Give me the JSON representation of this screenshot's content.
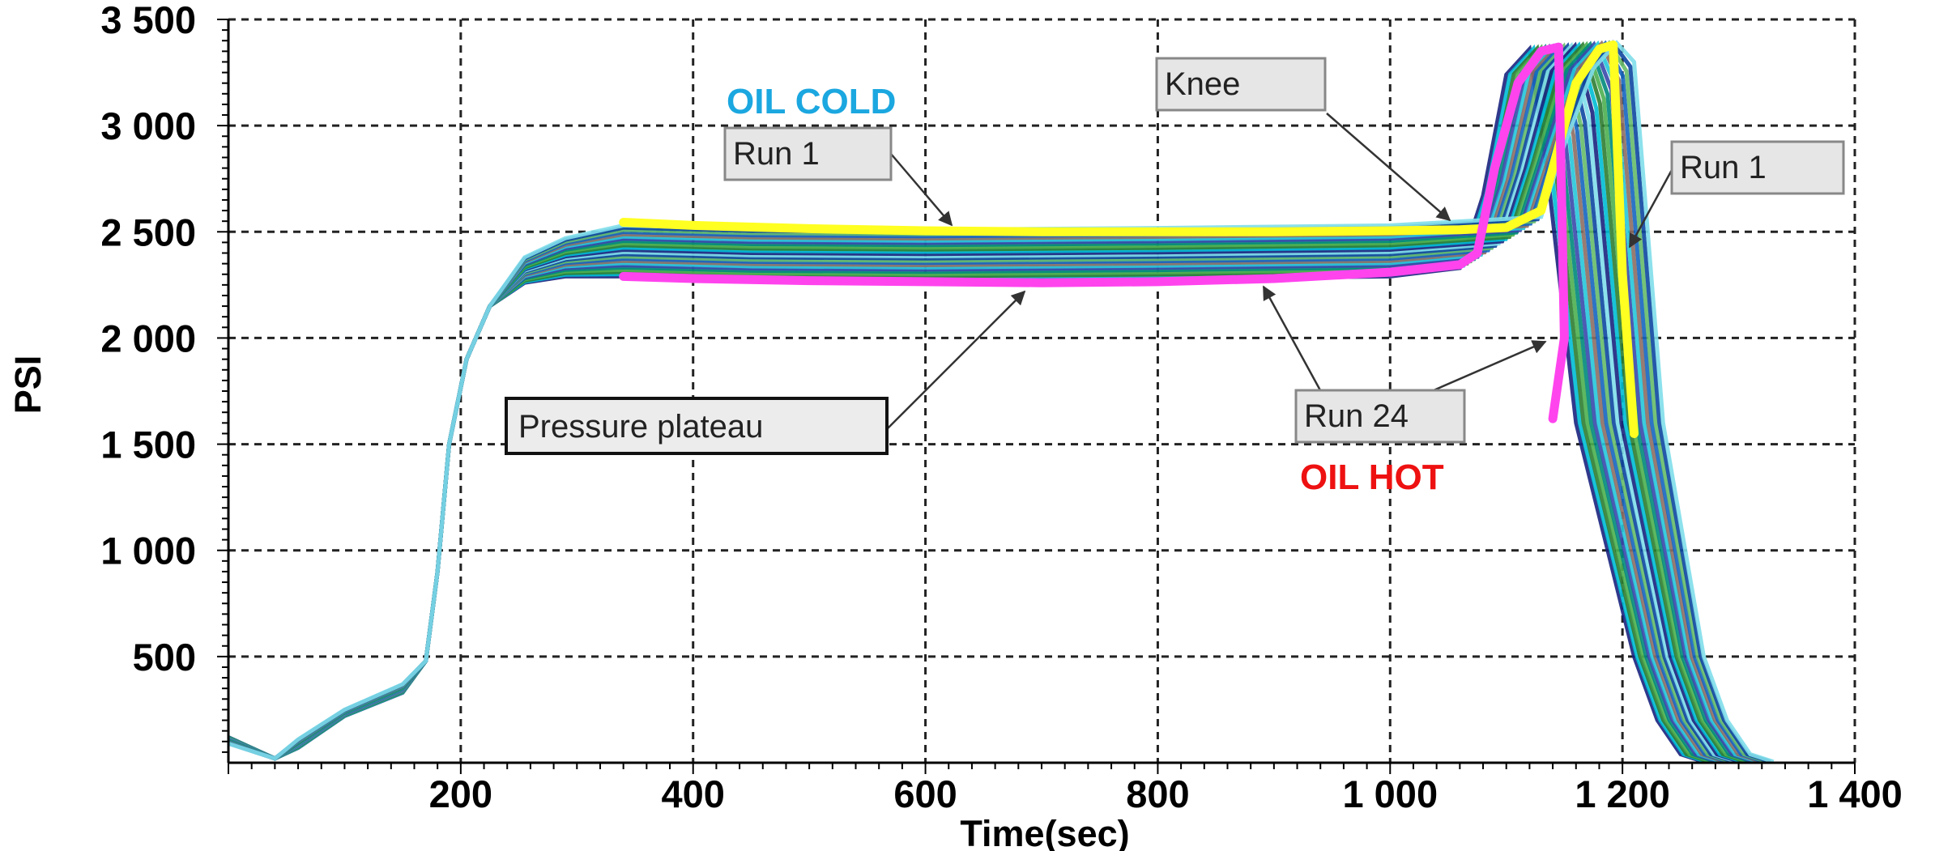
{
  "chart_data": {
    "type": "line",
    "title": "",
    "xlabel": "Time(sec)",
    "ylabel": "PSI",
    "xlim": [
      0,
      1400
    ],
    "ylim": [
      0,
      3500
    ],
    "x_ticks": [
      200,
      400,
      600,
      800,
      1000,
      1200,
      1400
    ],
    "x_tick_labels": [
      "200",
      "400",
      "600",
      "800",
      "1 000",
      "1 200",
      "1 400"
    ],
    "y_ticks": [
      500,
      1000,
      1500,
      2000,
      2500,
      3000,
      3500
    ],
    "y_tick_labels": [
      "500",
      "1 000",
      "1 500",
      "2 000",
      "2 500",
      "3 000",
      "3 500"
    ],
    "grid": true,
    "ensemble_count": 24,
    "ensemble_colors": [
      "#1a237e",
      "#00bcd4",
      "#2e7d32",
      "#4caf50",
      "#00897b",
      "#3949ab",
      "#26c6da",
      "#8d6e63",
      "#1565c0",
      "#66bb6a",
      "#0d47a1",
      "#80deea"
    ],
    "series": [
      {
        "name": "Run 1",
        "color": "#ffff22",
        "x": [
          340,
          400,
          500,
          600,
          700,
          800,
          900,
          1000,
          1060,
          1100,
          1130,
          1160,
          1180,
          1192,
          1200,
          1210
        ],
        "y": [
          2545,
          2530,
          2515,
          2505,
          2500,
          2500,
          2500,
          2505,
          2510,
          2520,
          2600,
          3200,
          3360,
          3380,
          2300,
          1550
        ]
      },
      {
        "name": "Run 24",
        "color": "#ff44ee",
        "x": [
          340,
          400,
          500,
          600,
          700,
          800,
          900,
          1000,
          1060,
          1075,
          1090,
          1110,
          1130,
          1145,
          1150,
          1140
        ],
        "y": [
          2290,
          2280,
          2270,
          2265,
          2260,
          2265,
          2280,
          2310,
          2345,
          2400,
          2800,
          3200,
          3350,
          3370,
          2000,
          1620
        ]
      }
    ],
    "annotations": [
      {
        "text": "Pressure plateau",
        "box": true
      },
      {
        "text": "Run 1",
        "box": true
      },
      {
        "text": "Knee",
        "box": true
      },
      {
        "text": "Run 1",
        "box": true
      },
      {
        "text": "Run 24",
        "box": true
      },
      {
        "text": "OIL COLD",
        "color": "#1ba7e0"
      },
      {
        "text": "OIL HOT",
        "color": "#ee1111"
      }
    ]
  }
}
